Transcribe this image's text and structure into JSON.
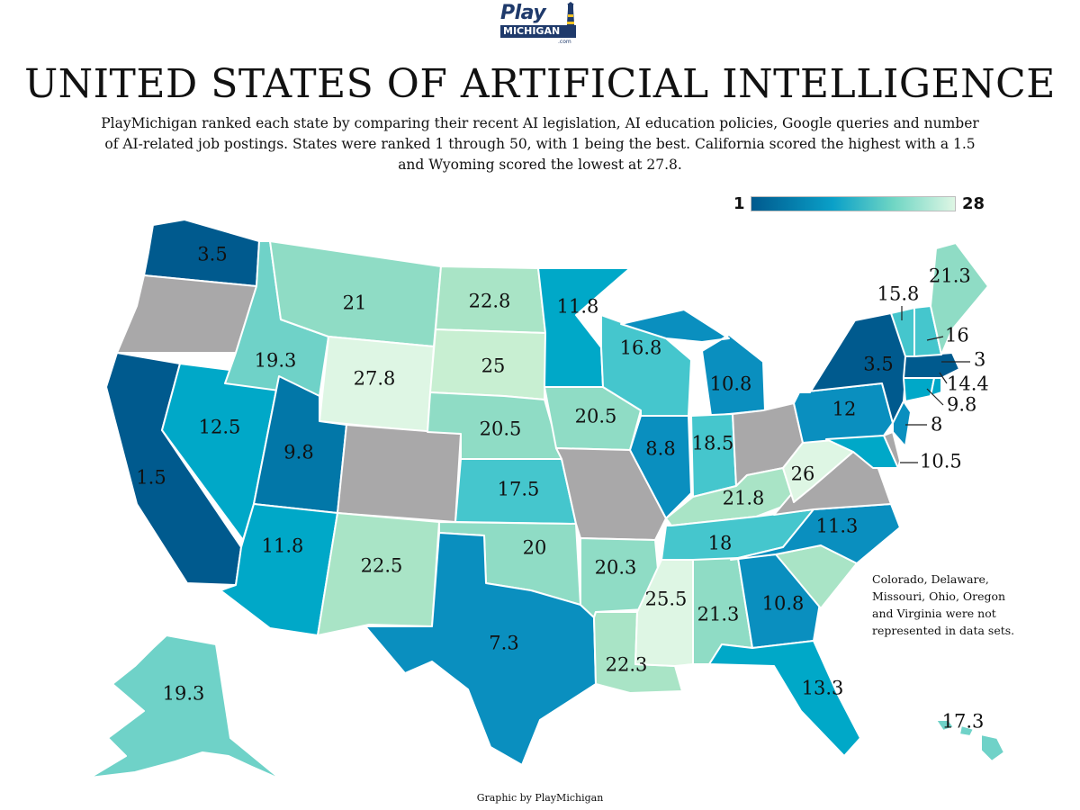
{
  "brand": {
    "play": "Play",
    "michigan": "MICHIGAN",
    "com": ".com"
  },
  "title": "UNITED STATES OF ARTIFICIAL INTELLIGENCE",
  "subtitle": "PlayMichigan ranked each state by comparing their recent AI legislation, AI education policies, Google queries and number of AI-related job postings. States were ranked 1 through 50, with 1 being the best. California scored the highest with a 1.5 and Wyoming scored the lowest at 27.8.",
  "legend": {
    "min": "1",
    "max": "28",
    "no_data_color": "#a9a8a9"
  },
  "colors": {
    "c1": "#005a8e",
    "c2": "#0277a8",
    "c3": "#0a8fbf",
    "c4": "#00a8c8",
    "c5": "#45c6cd",
    "c6": "#6fd2c8",
    "c7": "#8fdcc5",
    "c8": "#a9e4c6",
    "c9": "#c8efd2",
    "c10": "#def6e4"
  },
  "states": {
    "WA": "3.5",
    "OR": "",
    "CA": "1.5",
    "NV": "12.5",
    "ID": "19.3",
    "MT": "21",
    "WY": "27.8",
    "UT": "9.8",
    "AZ": "11.8",
    "CO": "",
    "NM": "22.5",
    "ND": "22.8",
    "SD": "25",
    "NE": "20.5",
    "KS": "17.5",
    "OK": "20",
    "TX": "7.3",
    "MN": "11.8",
    "IA": "20.5",
    "MO": "",
    "AR": "20.3",
    "LA": "22.3",
    "WI": "16.8",
    "IL": "8.8",
    "MI": "10.8",
    "IN": "18.5",
    "OH": "",
    "KY": "21.8",
    "TN": "18",
    "MS": "25.5",
    "AL": "21.3",
    "GA": "10.8",
    "FL": "13.3",
    "SC": "",
    "NC": "11.3",
    "VA": "",
    "WV": "26",
    "PA": "12",
    "NY": "3.5",
    "VT": "15.8",
    "NH": "16",
    "ME": "21.3",
    "MA": "3",
    "RI": "14.4",
    "CT": "9.8",
    "NJ": "8",
    "DE": "",
    "MD": "10.5",
    "AK": "19.3",
    "HI": "17.3"
  },
  "note": "Colorado, Delaware, Missouri, Ohio, Oregon and Virginia were not represented in data sets.",
  "credit": "Graphic by PlayMichigan"
}
